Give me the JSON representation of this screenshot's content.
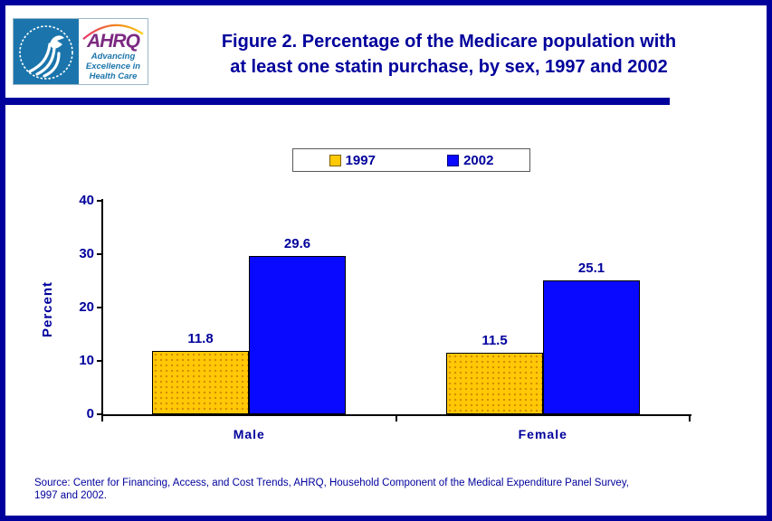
{
  "header": {
    "logo": {
      "hhs_emblem": "hhs-eagle",
      "ahrq_text": "AHRQ",
      "tagline_lines": [
        "Advancing",
        "Excellence in",
        "Health Care"
      ]
    },
    "title_line1": "Figure 2. Percentage of the Medicare population with",
    "title_line2": "at least one statin purchase, by sex, 1997 and 2002"
  },
  "chart_data": {
    "type": "bar",
    "title": "Figure 2. Percentage of the Medicare population with at least one statin purchase, by sex, 1997 and 2002",
    "categories": [
      "Male",
      "Female"
    ],
    "series": [
      {
        "name": "1997",
        "color": "#FFC905",
        "pattern": "dotted",
        "values": [
          11.8,
          11.5
        ]
      },
      {
        "name": "2002",
        "color": "#0909FF",
        "pattern": "solid",
        "values": [
          29.6,
          25.1
        ]
      }
    ],
    "xlabel": "",
    "ylabel": "Percent",
    "ylim": [
      0,
      40
    ],
    "yticks": [
      0,
      10,
      20,
      30,
      40
    ],
    "grid": false,
    "legend_position": "top-center",
    "value_labels": true,
    "navy_text_color": "#00009C",
    "axis_color": "#000000"
  },
  "footer": {
    "source_line1": "Source: Center for Financing, Access, and Cost Trends, AHRQ, Household Component of the Medical Expenditure Panel Survey,",
    "source_line2": "1997 and 2002."
  }
}
